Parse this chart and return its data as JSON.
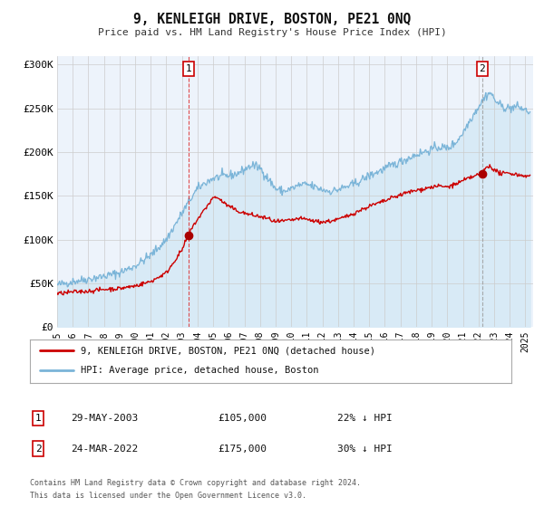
{
  "title": "9, KENLEIGH DRIVE, BOSTON, PE21 0NQ",
  "subtitle": "Price paid vs. HM Land Registry's House Price Index (HPI)",
  "ylim": [
    0,
    310000
  ],
  "xlim_start": 1995.0,
  "xlim_end": 2025.5,
  "yticks": [
    0,
    50000,
    100000,
    150000,
    200000,
    250000,
    300000
  ],
  "ytick_labels": [
    "£0",
    "£50K",
    "£100K",
    "£150K",
    "£200K",
    "£250K",
    "£300K"
  ],
  "xtick_years": [
    1995,
    1996,
    1997,
    1998,
    1999,
    2000,
    2001,
    2002,
    2003,
    2004,
    2005,
    2006,
    2007,
    2008,
    2009,
    2010,
    2011,
    2012,
    2013,
    2014,
    2015,
    2016,
    2017,
    2018,
    2019,
    2020,
    2021,
    2022,
    2023,
    2024,
    2025
  ],
  "hpi_line_color": "#7ab4d8",
  "hpi_fill_color": "#d8eaf6",
  "price_color": "#cc0000",
  "marker_color": "#aa0000",
  "plot_bg_color": "#edf3fb",
  "grid_color": "#ffffff",
  "event1_x": 2003.41,
  "event1_y": 105000,
  "event2_x": 2022.23,
  "event2_y": 175000,
  "legend_line1": "9, KENLEIGH DRIVE, BOSTON, PE21 0NQ (detached house)",
  "legend_line2": "HPI: Average price, detached house, Boston",
  "event1_date": "29-MAY-2003",
  "event1_price": "£105,000",
  "event1_hpi": "22% ↓ HPI",
  "event2_date": "24-MAR-2022",
  "event2_price": "£175,000",
  "event2_hpi": "30% ↓ HPI",
  "footer1": "Contains HM Land Registry data © Crown copyright and database right 2024.",
  "footer2": "This data is licensed under the Open Government Licence v3.0."
}
